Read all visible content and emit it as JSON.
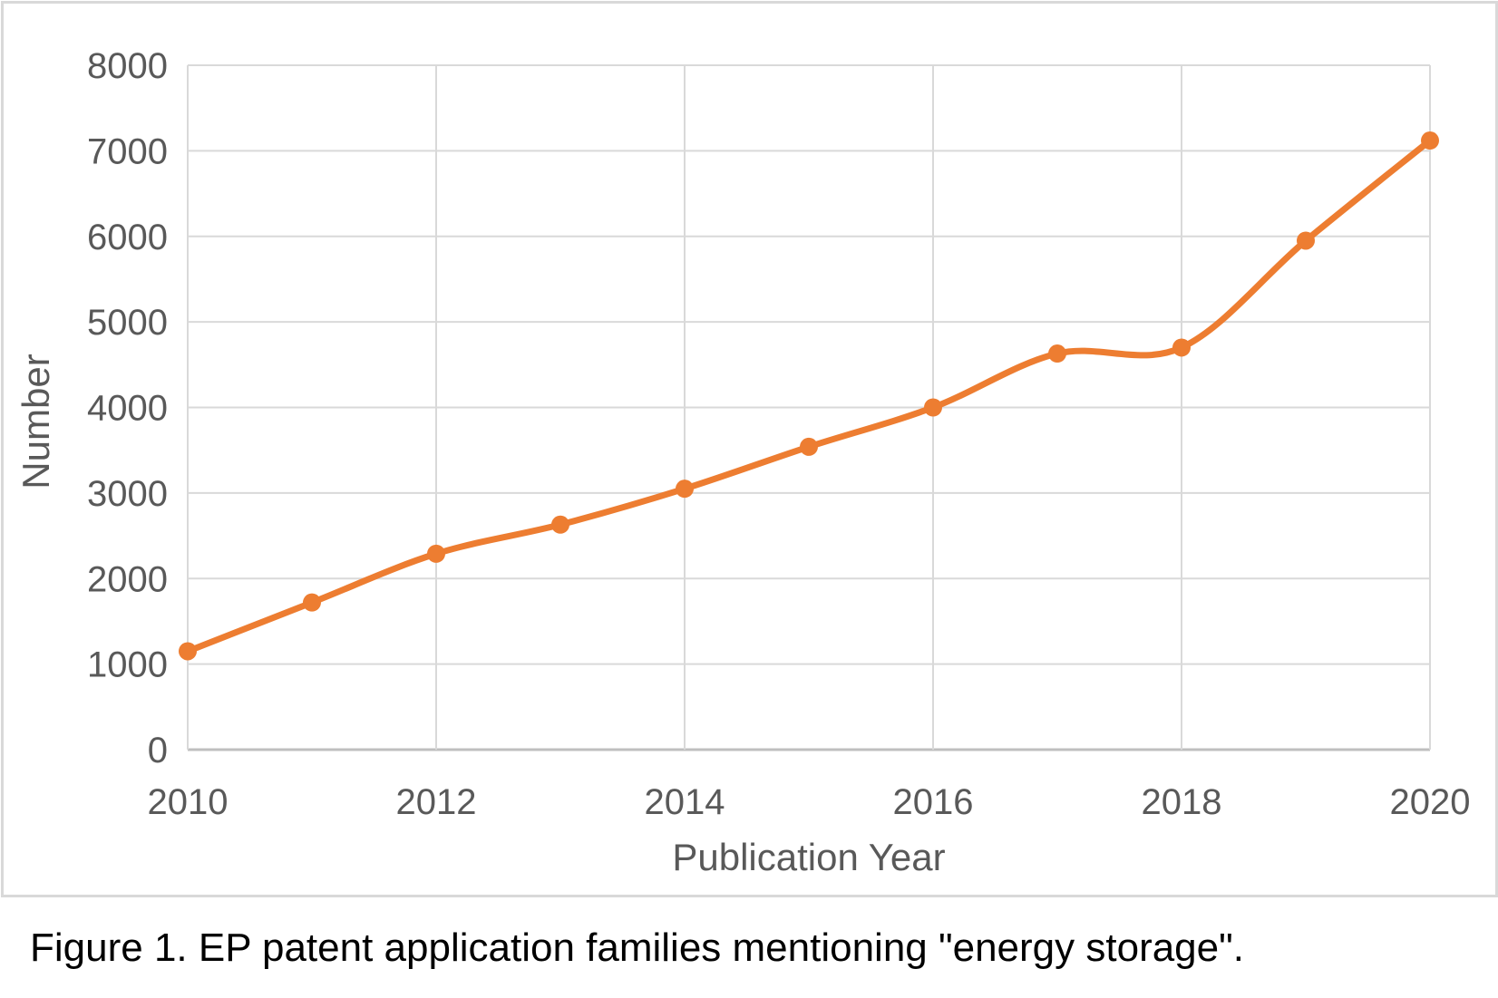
{
  "figure": {
    "caption": "Figure 1. EP patent application families mentioning \"energy storage\"."
  },
  "chart_data": {
    "type": "line",
    "title": "",
    "xlabel": "Publication Year",
    "ylabel": "Number",
    "x": [
      2010,
      2011,
      2012,
      2013,
      2014,
      2015,
      2016,
      2017,
      2018,
      2019,
      2020
    ],
    "series": [
      {
        "name": "EP patent application families",
        "values": [
          1150,
          1720,
          2290,
          2630,
          3050,
          3540,
          4000,
          4630,
          4700,
          5950,
          7120
        ]
      }
    ],
    "xlim": [
      2010,
      2020
    ],
    "ylim": [
      0,
      8000
    ],
    "x_ticks": [
      2010,
      2012,
      2014,
      2016,
      2018,
      2020
    ],
    "y_ticks": [
      0,
      1000,
      2000,
      3000,
      4000,
      5000,
      6000,
      7000,
      8000
    ],
    "grid": true,
    "legend": "none",
    "smooth_line": true,
    "colors": {
      "line": "#ED7D31",
      "marker": "#ED7D31",
      "gridline": "#D9D9D9",
      "axis_line": "#BFBFBF",
      "tick_text": "#595959",
      "frame_border": "#D9D9D9",
      "caption_text": "#000000"
    }
  }
}
